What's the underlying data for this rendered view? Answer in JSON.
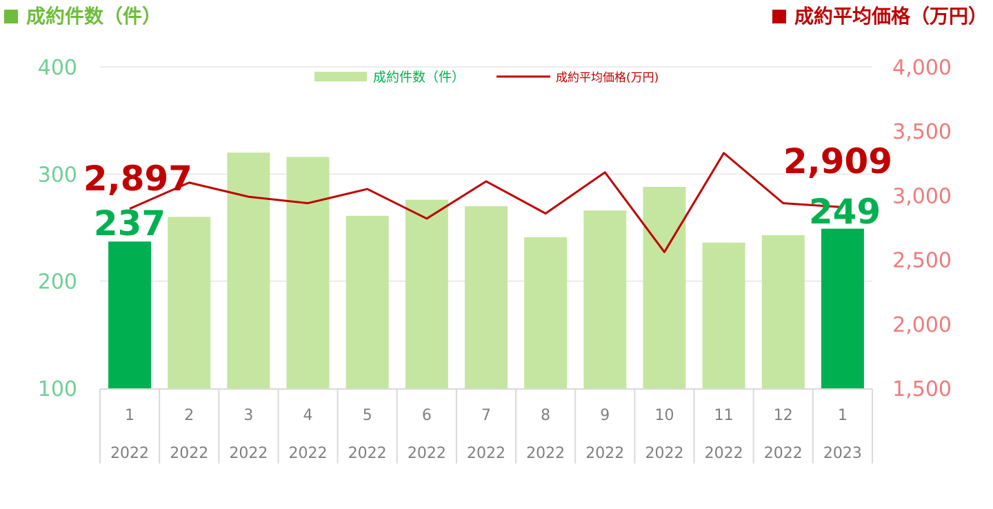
{
  "header": {
    "left_title": "成約件数（件）",
    "right_title": "成約平均価格（万円）"
  },
  "legend": {
    "bar_label": "成約件数（件）",
    "line_label": "成約平均価格(万円)"
  },
  "colors": {
    "bar": "#c5e6a0",
    "bar_highlight": "#00b050",
    "line": "#c00000",
    "left_axis": "#6fcf97",
    "right_axis": "#f07a7a",
    "category_text": "#7f7f7f",
    "left_callout": "#00b050",
    "right_callout": "#c00000"
  },
  "chart_data": {
    "type": "bar",
    "combo": "bar+line",
    "categories": [
      [
        "1",
        "2022"
      ],
      [
        "2",
        "2022"
      ],
      [
        "3",
        "2022"
      ],
      [
        "4",
        "2022"
      ],
      [
        "5",
        "2022"
      ],
      [
        "6",
        "2022"
      ],
      [
        "7",
        "2022"
      ],
      [
        "8",
        "2022"
      ],
      [
        "9",
        "2022"
      ],
      [
        "10",
        "2022"
      ],
      [
        "11",
        "2022"
      ],
      [
        "12",
        "2022"
      ],
      [
        "1",
        "2023"
      ]
    ],
    "series": [
      {
        "name": "成約件数（件）",
        "type": "bar",
        "axis": "left",
        "values": [
          237,
          260,
          320,
          316,
          261,
          276,
          270,
          241,
          266,
          288,
          236,
          243,
          249
        ],
        "highlight_indices": [
          0,
          12
        ]
      },
      {
        "name": "成約平均価格(万円)",
        "type": "line",
        "axis": "right",
        "values": [
          2897,
          3100,
          2990,
          2940,
          3050,
          2820,
          3110,
          2860,
          3180,
          2560,
          3330,
          2940,
          2909
        ]
      }
    ],
    "left_axis": {
      "ylim": [
        100,
        400
      ],
      "ticks": [
        "100",
        "200",
        "300",
        "400"
      ]
    },
    "right_axis": {
      "ylim": [
        1500,
        4000
      ],
      "ticks": [
        "1,500",
        "2,000",
        "2,500",
        "3,000",
        "3,500",
        "4,000"
      ]
    },
    "grid": true,
    "legend_position": "top-center",
    "annotations": {
      "start_count": "237",
      "end_count": "249",
      "start_price": "2,897",
      "end_price": "2,909"
    }
  }
}
